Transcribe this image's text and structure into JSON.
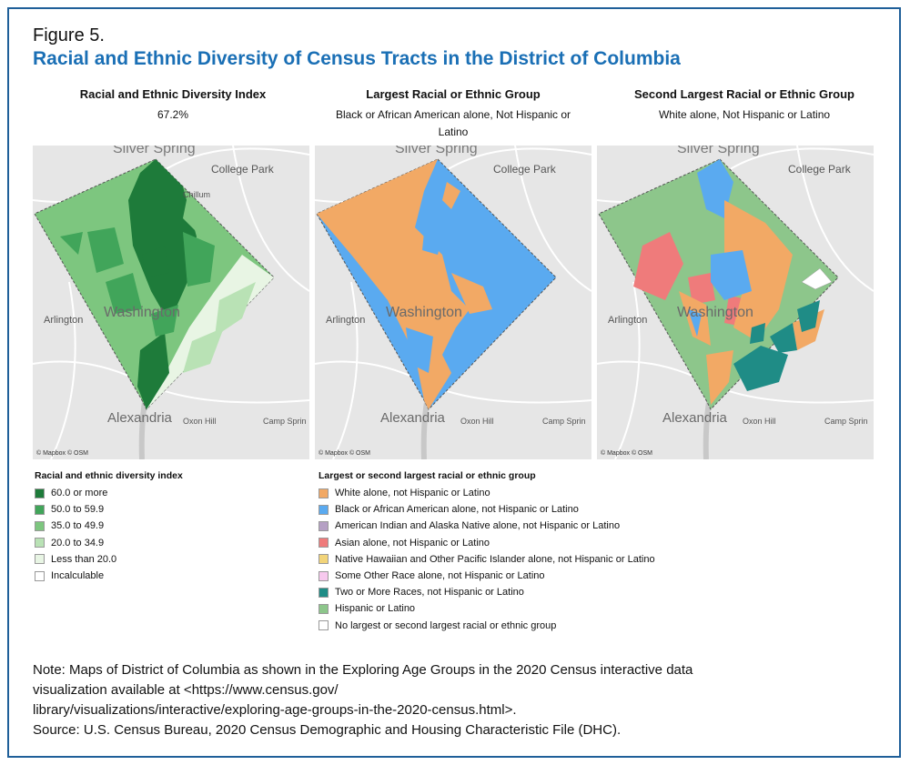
{
  "figure": {
    "label": "Figure 5.",
    "title": "Racial and Ethnic Diversity of Census Tracts in the District of Columbia"
  },
  "panels": [
    {
      "heading": "Racial and Ethnic Diversity Index",
      "value": "67.2%"
    },
    {
      "heading": "Largest Racial or Ethnic Group",
      "value": "Black or African American alone, Not Hispanic or Latino"
    },
    {
      "heading": "Second Largest Racial or Ethnic Group",
      "value": "White alone, Not Hispanic or Latino"
    }
  ],
  "map_labels": {
    "silver_spring": "Silver Spring",
    "college_park": "College Park",
    "chillum": "Chillum",
    "arlington": "Arlington",
    "washington": "Washington",
    "alexandria": "Alexandria",
    "oxon_hill": "Oxon Hill",
    "camp_springs": "Camp Sprin",
    "attribution": "© Mapbox © OSM"
  },
  "legend_diversity": {
    "title": "Racial and ethnic diversity index",
    "items": [
      {
        "label": "60.0 or more",
        "color": "#1e7b3a"
      },
      {
        "label": "50.0 to 59.9",
        "color": "#41a55a"
      },
      {
        "label": "35.0 to 49.9",
        "color": "#7dc67f"
      },
      {
        "label": "20.0 to 34.9",
        "color": "#b9e2b5"
      },
      {
        "label": "Less than 20.0",
        "color": "#e8f5e4"
      },
      {
        "label": "Incalculable",
        "color": "#ffffff"
      }
    ]
  },
  "legend_groups": {
    "title": "Largest or second largest racial or ethnic group",
    "items": [
      {
        "label": "White alone, not Hispanic or Latino",
        "color": "#f2a965"
      },
      {
        "label": "Black or African American alone, not Hispanic or Latino",
        "color": "#5aaaf0"
      },
      {
        "label": "American Indian and Alaska Native alone, not Hispanic or Latino",
        "color": "#b5a0c4"
      },
      {
        "label": "Asian alone, not Hispanic or Latino",
        "color": "#ef7b7b"
      },
      {
        "label": "Native Hawaiian and Other Pacific Islander alone, not Hispanic or Latino",
        "color": "#f2d479"
      },
      {
        "label": "Some Other Race alone, not Hispanic or Latino",
        "color": "#f7c9ee"
      },
      {
        "label": "Two or More Races, not Hispanic or Latino",
        "color": "#1f8c86"
      },
      {
        "label": "Hispanic or Latino",
        "color": "#8dc68b"
      },
      {
        "label": "No largest or second largest racial or ethnic group",
        "color": "#ffffff"
      }
    ]
  },
  "notes": {
    "line1": "Note: Maps of District of Columbia as shown in the Exploring Age Groups in the 2020 Census interactive data",
    "line2": "visualization available at <https://www.census.gov/",
    "line3": "library/visualizations/interactive/exploring-age-groups-in-the-2020-census.html>.",
    "source": "Source: U.S. Census Bureau, 2020 Census Demographic and Housing Characteristic File (DHC)."
  }
}
